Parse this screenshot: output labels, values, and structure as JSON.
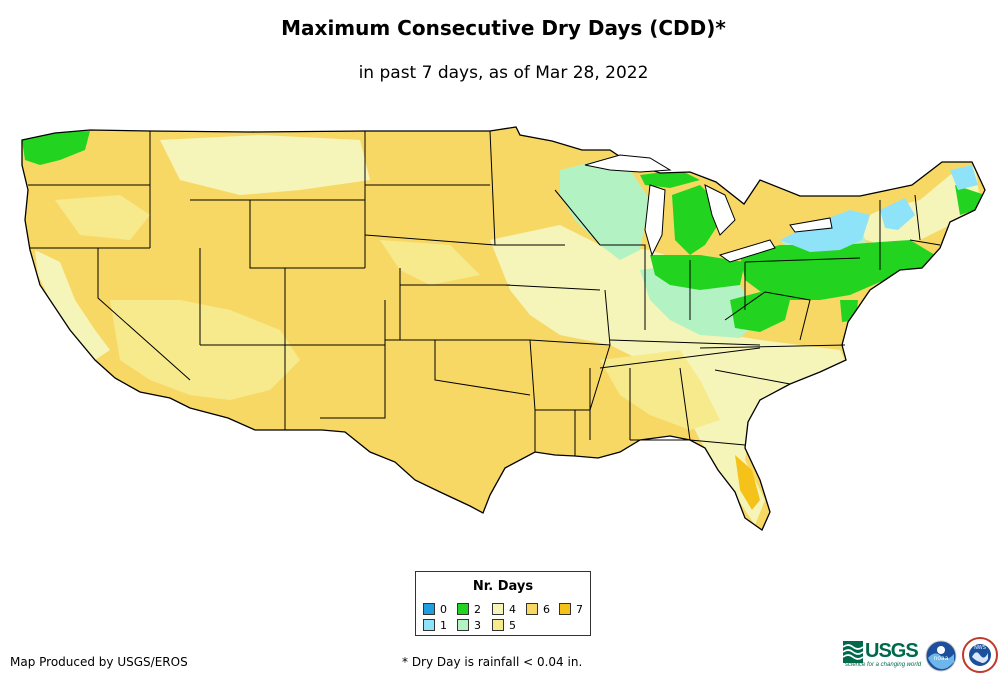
{
  "title": "Maximum Consecutive Dry Days (CDD)*",
  "subtitle": "in past 7 days, as of Mar 28, 2022",
  "legend": {
    "title": "Nr. Days",
    "items": [
      {
        "label": "0",
        "color": "#1f9fe0"
      },
      {
        "label": "1",
        "color": "#8fe3f8"
      },
      {
        "label": "2",
        "color": "#22d41f"
      },
      {
        "label": "3",
        "color": "#b3f2c3"
      },
      {
        "label": "4",
        "color": "#f6f5b9"
      },
      {
        "label": "5",
        "color": "#f7ea8c"
      },
      {
        "label": "6",
        "color": "#f8d865"
      },
      {
        "label": "7",
        "color": "#f5c21a"
      }
    ]
  },
  "credit": "Map Produced by USGS/EROS",
  "footnote": "* Dry Day is rainfall < 0.04 in.",
  "logos": {
    "usgs_word": "USGS",
    "usgs_tagline": "science for a changing world",
    "noaa": "noaa",
    "nws": "NWS"
  },
  "colors": {
    "border": "#000000",
    "background": "#ffffff"
  }
}
